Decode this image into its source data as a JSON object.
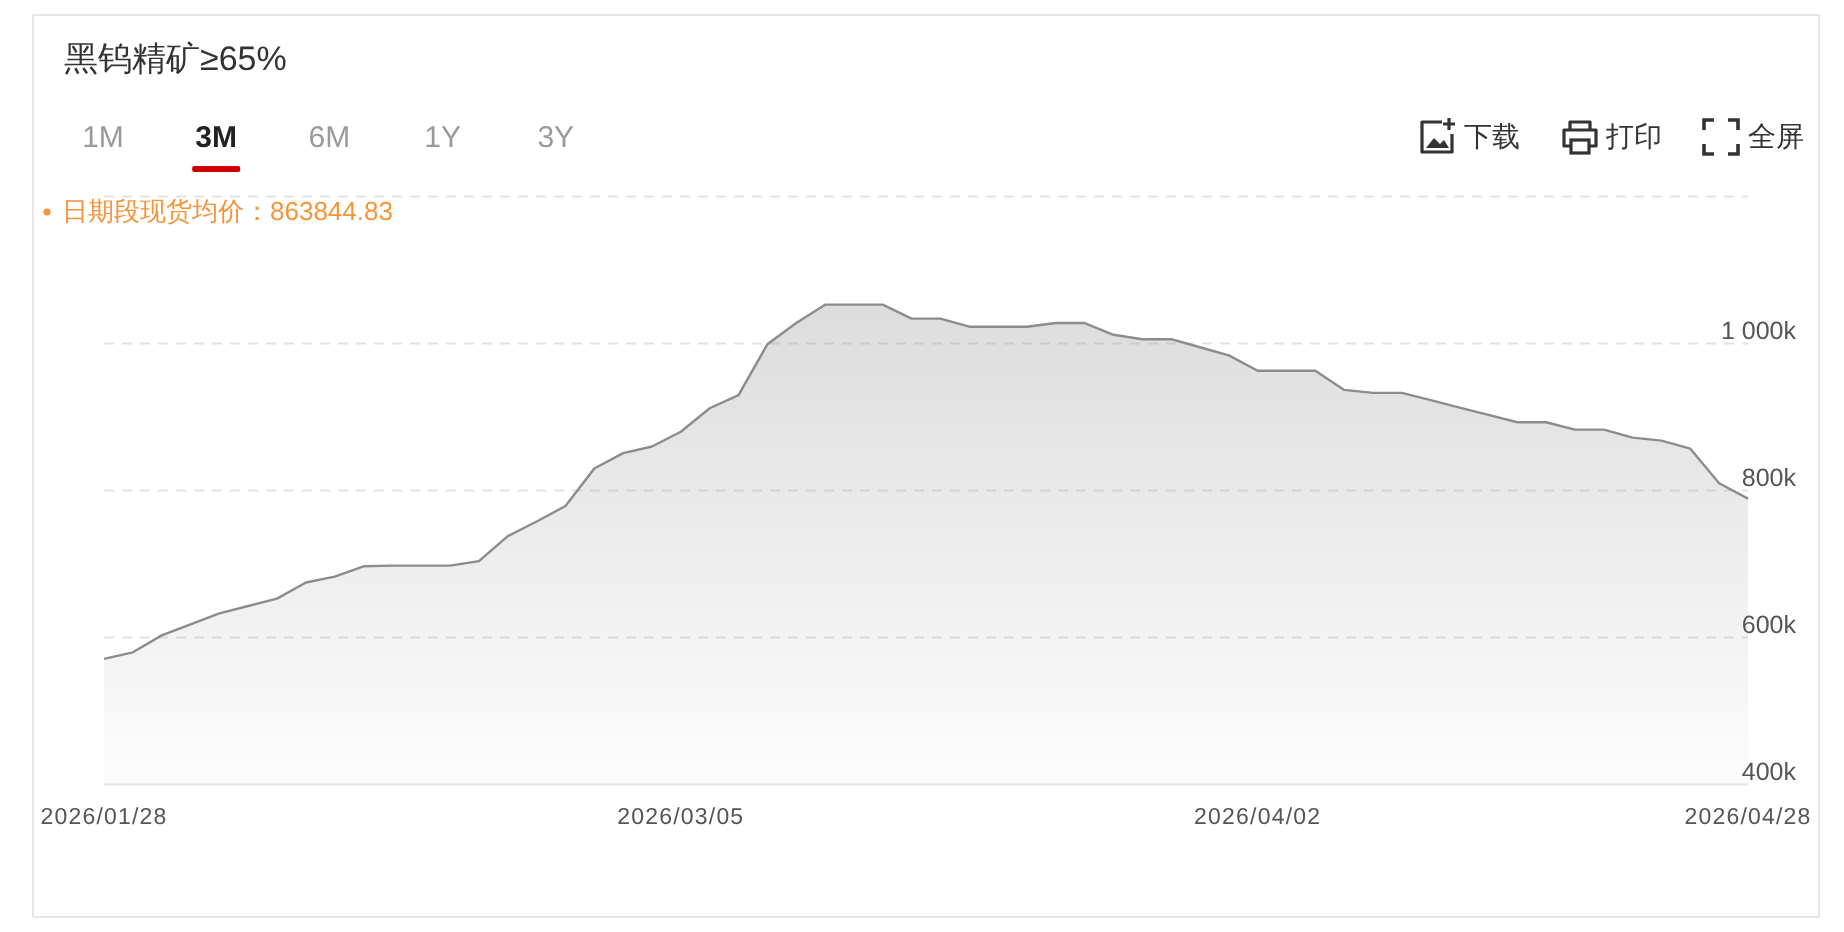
{
  "chart_data": {
    "type": "area",
    "title": "黑钨精矿≥65%",
    "annotations": [
      "1M",
      "3M",
      "6M",
      "1Y",
      "3Y",
      "下载",
      "打印",
      "全屏",
      "日期段现货均价：863844.83"
    ],
    "categories": [
      "2026/01/28",
      null,
      null,
      null,
      null,
      null,
      null,
      null,
      null,
      null,
      null,
      null,
      null,
      null,
      null,
      null,
      null,
      null,
      null,
      null,
      "2026/03/05",
      null,
      null,
      null,
      null,
      null,
      null,
      null,
      null,
      null,
      null,
      null,
      null,
      null,
      null,
      null,
      null,
      null,
      null,
      null,
      "2026/04/02",
      null,
      null,
      null,
      null,
      null,
      null,
      null,
      null,
      null,
      null,
      null,
      null,
      null,
      null,
      null,
      null,
      "2026/04/28"
    ],
    "series": [
      {
        "color": "#8c8c8c",
        "values": [
          571000,
          580000,
          603000,
          618000,
          633000,
          643000,
          653000,
          675000,
          683000,
          697000,
          698000,
          698000,
          698000,
          704000,
          738000,
          758000,
          779000,
          830000,
          851000,
          860000,
          880000,
          912000,
          930000,
          999000,
          1028000,
          1053000,
          1053000,
          1053000,
          1034000,
          1034000,
          1023000,
          1023000,
          1023000,
          1028000,
          1028000,
          1012000,
          1006000,
          1006000,
          995000,
          984000,
          963000,
          963000,
          963000,
          937000,
          933000,
          933000,
          923000,
          913000,
          903000,
          893000,
          893000,
          883000,
          883000,
          872000,
          868000,
          857000,
          810000,
          789000
        ]
      }
    ],
    "ylim": [
      400000,
      1200000
    ],
    "yticks": [
      {
        "value": 400000,
        "label": "400k"
      },
      {
        "value": 600000,
        "label": "600k"
      },
      {
        "value": 800000,
        "label": "800k"
      },
      {
        "value": 1000000,
        "label": "1 000k"
      },
      {
        "value": 1200000,
        "label": null
      }
    ],
    "grid": "y"
  }
}
